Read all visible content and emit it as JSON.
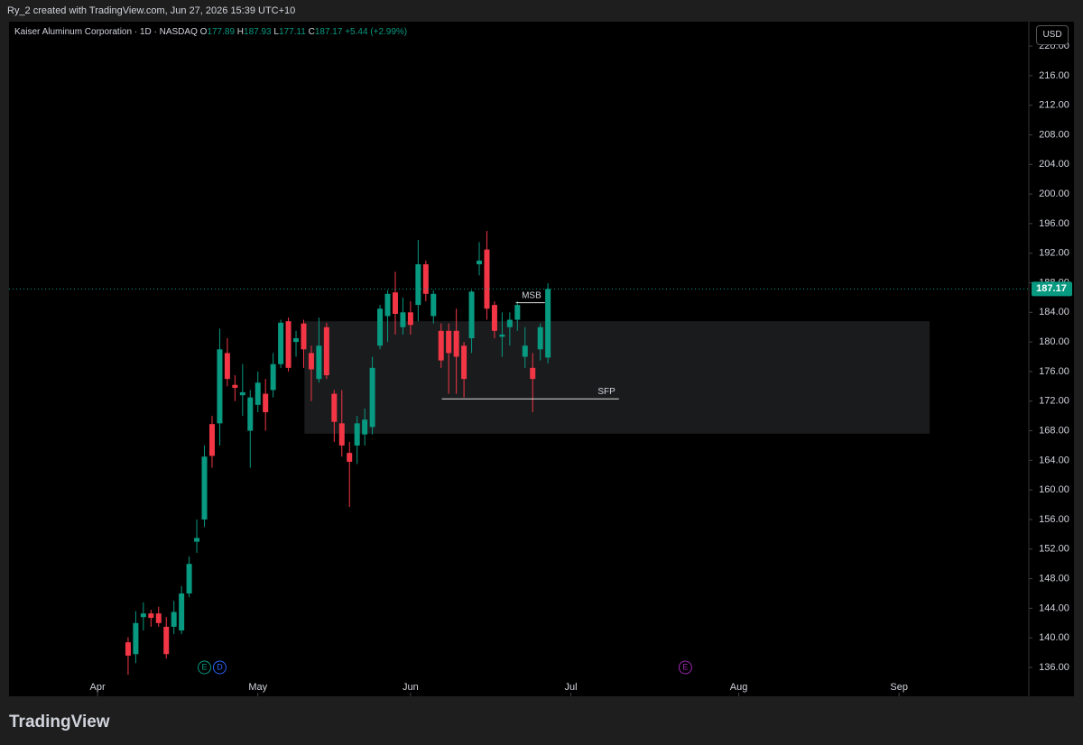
{
  "top_bar": {
    "text": "Ry_2 created with TradingView.com, Jun 27, 2026 15:39 UTC+10"
  },
  "footer": {
    "logo": "TradingView"
  },
  "currency_button": "USD",
  "chart_data": {
    "type": "candlestick",
    "legend": {
      "symbol": "Kaiser Aluminum Corporation · 1D · NASDAQ",
      "ohlc": [
        {
          "key": "O",
          "value": "177.89"
        },
        {
          "key": "H",
          "value": "187.93"
        },
        {
          "key": "L",
          "value": "177.11"
        },
        {
          "key": "C",
          "value": "187.17"
        }
      ],
      "change": "+5.44 (+2.99%)"
    },
    "up_color": "#089981",
    "down_color": "#f23645",
    "x": [
      4,
      5,
      6,
      7,
      8,
      9,
      10,
      11,
      12,
      13,
      14,
      15,
      16,
      17,
      18,
      19,
      20,
      21,
      22,
      23,
      24,
      25,
      26,
      27,
      28,
      29,
      30,
      31,
      32,
      33,
      34,
      35,
      36,
      37,
      38,
      39,
      40,
      41,
      42,
      43,
      44,
      45,
      46,
      47,
      48,
      49,
      50,
      51,
      52,
      53,
      54,
      55,
      56,
      57,
      58,
      59
    ],
    "open": [
      139.4,
      137.8,
      142.8,
      143.3,
      143.3,
      141.5,
      141.5,
      141,
      146,
      153,
      156,
      168.9,
      169,
      178.5,
      174.2,
      172.8,
      168,
      171.5,
      173,
      173.5,
      177,
      182.8,
      180,
      182.5,
      178.5,
      175,
      182,
      173,
      169,
      165,
      166,
      167.5,
      168.5,
      179.5,
      183.5,
      186.7,
      182,
      184,
      185,
      190.5,
      183.5,
      181.5,
      181.5,
      181.5,
      179.5,
      180.5,
      190.5,
      192.5,
      185,
      180.7,
      182,
      183,
      178,
      176.5,
      179,
      177.89
    ],
    "high": [
      140.1,
      143.6,
      144.8,
      143.8,
      144.2,
      142.8,
      145,
      147,
      151,
      156,
      166,
      170,
      181.8,
      180.5,
      175.5,
      177,
      173.5,
      176,
      175,
      178.5,
      183,
      183.3,
      181.5,
      183,
      179.5,
      183.3,
      182.6,
      173.5,
      173.5,
      166.5,
      170,
      171,
      178,
      185,
      187,
      189.5,
      186,
      185.5,
      193.8,
      191,
      187,
      182.5,
      182.5,
      184.5,
      180,
      187,
      193.5,
      195,
      185.5,
      184,
      184,
      185.5,
      182,
      178.5,
      182.5,
      187.93
    ],
    "low": [
      135,
      136.6,
      141,
      141.5,
      141.5,
      137.2,
      140.5,
      140.5,
      145.5,
      151.5,
      155,
      163,
      166,
      174,
      172,
      170,
      163,
      170.5,
      168,
      172.5,
      176.5,
      176,
      178,
      176.5,
      172,
      174.5,
      175,
      166.5,
      164.5,
      157.7,
      163.5,
      166,
      167.5,
      179,
      180,
      181,
      181,
      181,
      182.8,
      185.5,
      182.5,
      176.5,
      173,
      173,
      172.5,
      178.5,
      189,
      183,
      180.5,
      178,
      179.5,
      181.5,
      176.5,
      170.5,
      177.5,
      177.11
    ],
    "close": [
      137.6,
      142,
      143.3,
      142.7,
      142,
      137.8,
      143.5,
      146,
      150,
      153.5,
      164.5,
      164.6,
      179,
      175,
      173.8,
      173.2,
      172.5,
      174.5,
      170.5,
      177,
      182.6,
      176.5,
      180.5,
      179,
      176.3,
      179.5,
      175.5,
      169.2,
      166,
      163.8,
      169,
      169.5,
      176.5,
      184.5,
      186.5,
      183.8,
      184,
      182.3,
      190.5,
      186.5,
      186.5,
      177.5,
      178.5,
      178,
      175,
      186.8,
      191,
      184.5,
      181.5,
      181,
      183,
      185,
      179.5,
      175,
      182,
      187.17
    ],
    "xlim": [
      -11.6,
      122
    ],
    "xticks": [
      {
        "value": 0,
        "label": "Apr"
      },
      {
        "value": 21,
        "label": "May"
      },
      {
        "value": 41,
        "label": "Jun"
      },
      {
        "value": 62,
        "label": "Jul"
      },
      {
        "value": 84,
        "label": "Aug"
      },
      {
        "value": 105,
        "label": "Sep"
      }
    ],
    "ylim": [
      132.1,
      223.3
    ],
    "yticks": [
      {
        "value": 136,
        "label": "136.00"
      },
      {
        "value": 140,
        "label": "140.00"
      },
      {
        "value": 144,
        "label": "144.00"
      },
      {
        "value": 148,
        "label": "148.00"
      },
      {
        "value": 152,
        "label": "152.00"
      },
      {
        "value": 156,
        "label": "156.00"
      },
      {
        "value": 160,
        "label": "160.00"
      },
      {
        "value": 164,
        "label": "164.00"
      },
      {
        "value": 168,
        "label": "168.00"
      },
      {
        "value": 172,
        "label": "172.00"
      },
      {
        "value": 176,
        "label": "176.00"
      },
      {
        "value": 180,
        "label": "180.00"
      },
      {
        "value": 184,
        "label": "184.00"
      },
      {
        "value": 188,
        "label": "188.00"
      },
      {
        "value": 192,
        "label": "192.00"
      },
      {
        "value": 196,
        "label": "196.00"
      },
      {
        "value": 200,
        "label": "200.00"
      },
      {
        "value": 204,
        "label": "204.00"
      },
      {
        "value": 208,
        "label": "208.00"
      },
      {
        "value": 212,
        "label": "212.00"
      },
      {
        "value": 216,
        "label": "216.00"
      },
      {
        "value": 220,
        "label": "220.00"
      }
    ],
    "last_price": {
      "value": 187.17,
      "label": "187.17"
    },
    "zone": {
      "x": [
        27.1,
        109
      ],
      "y": [
        167.6,
        182.8
      ]
    },
    "lines": [
      {
        "label": "MSB",
        "x": [
          54.8,
          58.6
        ],
        "y": 185.3
      },
      {
        "label": "SFP",
        "x": [
          45.1,
          68.3
        ],
        "y": 172.3
      }
    ],
    "events": [
      {
        "label": "E",
        "x": 14,
        "color": "#089981"
      },
      {
        "label": "D",
        "x": 16,
        "color": "#2962ff"
      },
      {
        "label": "E",
        "x": 77,
        "color": "#9c27b0"
      }
    ]
  }
}
